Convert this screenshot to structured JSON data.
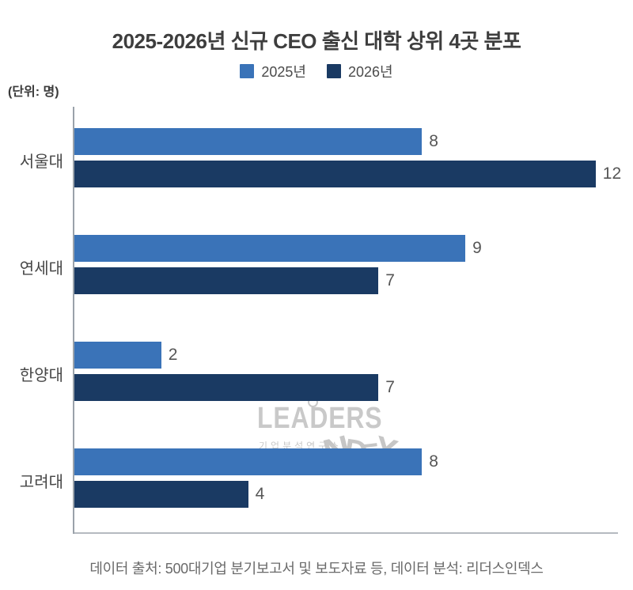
{
  "title": "2025-2026년 신규 CEO 출신 대학 상위 4곳 분포",
  "unit_label": "(단위: 명)",
  "legend": {
    "items": [
      {
        "label": "2025년",
        "color": "#3A73B8"
      },
      {
        "label": "2026년",
        "color": "#1A3A63"
      }
    ]
  },
  "watermark": {
    "brand_top": "LEADERS",
    "brand_sub": "기업분석연구소",
    "brand_bottom": "INDEX"
  },
  "source_note": "데이터 출처: 500대기업 분기보고서 및 보도자료 등, 데이터 분석: 리더스인덱스",
  "chart_data": {
    "type": "bar",
    "orientation": "horizontal",
    "title": "2025-2026년 신규 CEO 출신 대학 상위 4곳 분포",
    "unit": "명",
    "categories": [
      "서울대",
      "연세대",
      "한양대",
      "고려대"
    ],
    "series": [
      {
        "name": "2025년",
        "color": "#3A73B8",
        "values": [
          8,
          9,
          2,
          8
        ]
      },
      {
        "name": "2026년",
        "color": "#1A3A63",
        "values": [
          12,
          7,
          7,
          4
        ]
      }
    ],
    "value_labels": true,
    "xlim": [
      0,
      12.6
    ],
    "grid": false,
    "legend_position": "top"
  }
}
